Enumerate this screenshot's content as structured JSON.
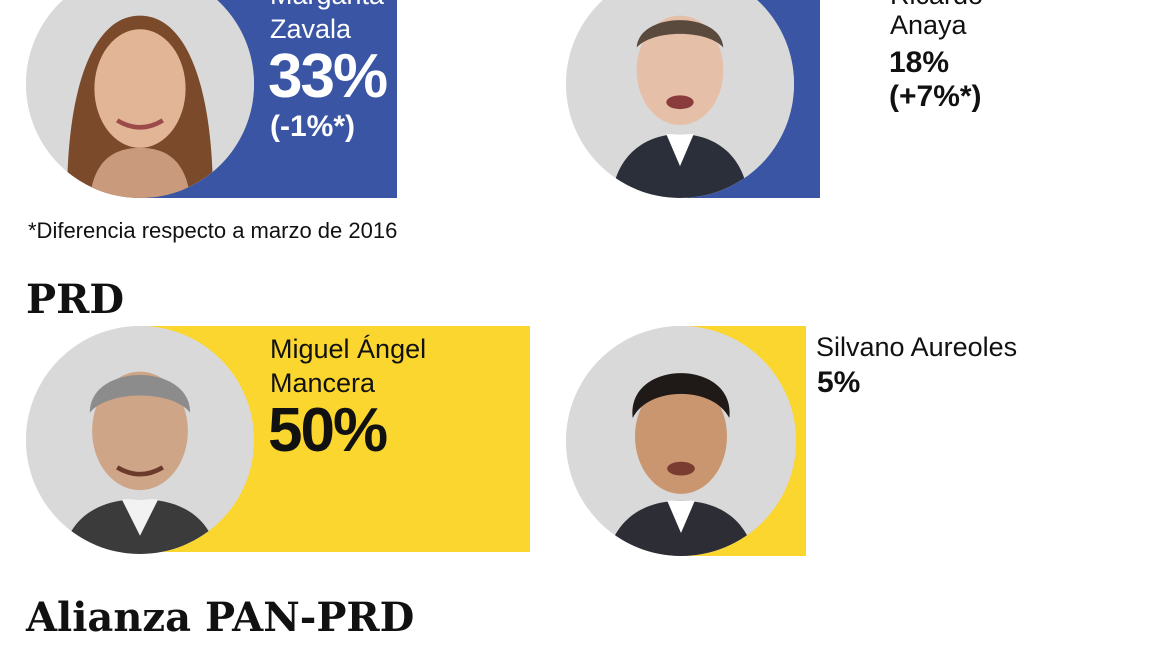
{
  "chart_data": {
    "type": "bar",
    "footnote": "*Diferencia respecto a marzo de 2016",
    "groups": [
      {
        "section": "",
        "color": "#3a55a3",
        "candidates": [
          {
            "name": "Margarita Zavala",
            "name_lines": [
              "Margarita",
              "Zavala"
            ],
            "value": 33,
            "label": "33%",
            "change": "(-1%*)"
          },
          {
            "name": "Ricardo Anaya",
            "name_lines": [
              "Ricardo",
              "Anaya"
            ],
            "value": 18,
            "label": "18%",
            "change": "(+7%*)"
          }
        ]
      },
      {
        "section": "PRD",
        "color": "#fbd62f",
        "candidates": [
          {
            "name": "Miguel Ángel Mancera",
            "name_lines": [
              "Miguel Ángel",
              "Mancera"
            ],
            "value": 50,
            "label": "50%",
            "change": ""
          },
          {
            "name": "Silvano Aureoles",
            "name_lines": [
              "Silvano Aureoles"
            ],
            "value": 5,
            "label": "5%",
            "change": ""
          }
        ]
      },
      {
        "section": "Alianza PAN-PRD",
        "candidates": []
      }
    ]
  }
}
